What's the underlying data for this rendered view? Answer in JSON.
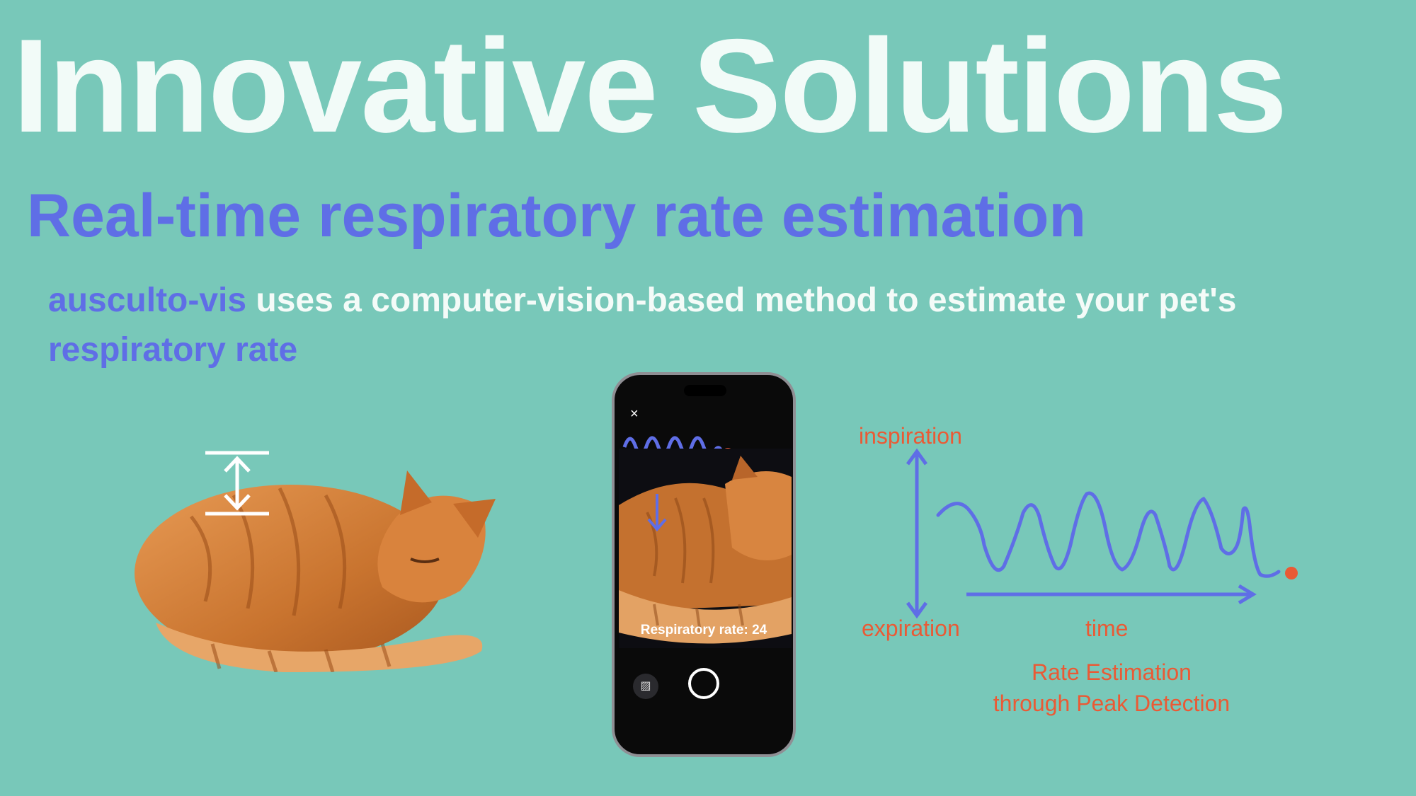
{
  "slide": {
    "title": "Innovative Solutions",
    "subtitle": "Real-time respiratory rate estimation",
    "description": {
      "brand": "ausculto-vis",
      "text": " uses a computer-vision-based method to estimate your pet's ",
      "highlight": "respiratory rate"
    }
  },
  "phone": {
    "close_glyph": "×",
    "rate_label": "Respiratory rate: 24",
    "gallery_glyph": "▨"
  },
  "diagram": {
    "top_label": "inspiration",
    "bottom_label": "expiration",
    "axis_label": "time",
    "caption_line1": "Rate Estimation",
    "caption_line2": "through Peak Detection"
  },
  "colors": {
    "background": "#78c8b9",
    "accent_blue": "#5f6ee6",
    "accent_orange": "#ea5a35",
    "title_white": "#f2fbf8"
  },
  "icons": [
    "close-icon",
    "gallery-icon",
    "shutter-button",
    "up-down-arrow-icon",
    "down-arrow-icon",
    "peak-dot-icon"
  ]
}
